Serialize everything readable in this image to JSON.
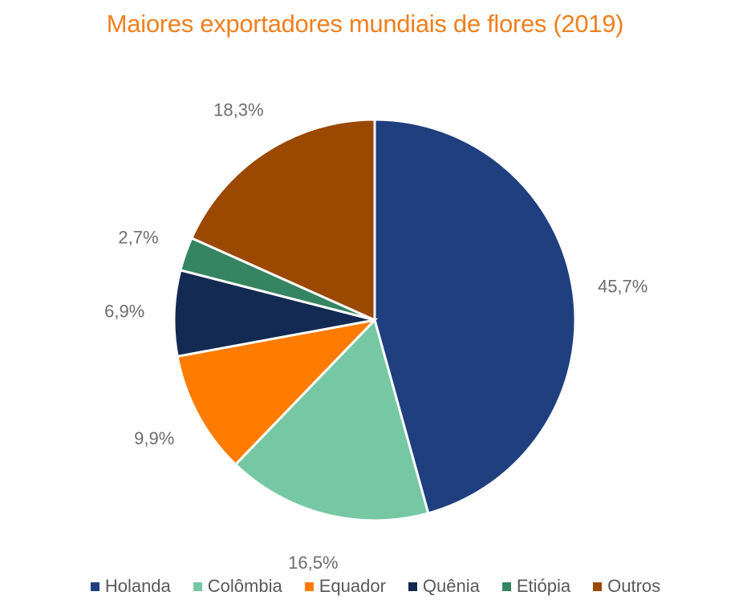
{
  "chart_data": {
    "type": "pie",
    "title": "Maiores exportadores mundiais de flores (2019)",
    "categories": [
      "Holanda",
      "Colômbia",
      "Equador",
      "Quênia",
      "Etiópia",
      "Outros"
    ],
    "values": [
      45.7,
      16.5,
      9.9,
      6.9,
      2.7,
      18.3
    ],
    "labels": [
      "45,7%",
      "16,5%",
      "9,9%",
      "6,9%",
      "2,7%",
      "18,3%"
    ],
    "colors": [
      "#1f3f7f",
      "#76c7a4",
      "#ff7c00",
      "#132a52",
      "#358462",
      "#9b4800"
    ],
    "start_angle": "top",
    "direction": "clockwise",
    "legend": "bottom"
  }
}
